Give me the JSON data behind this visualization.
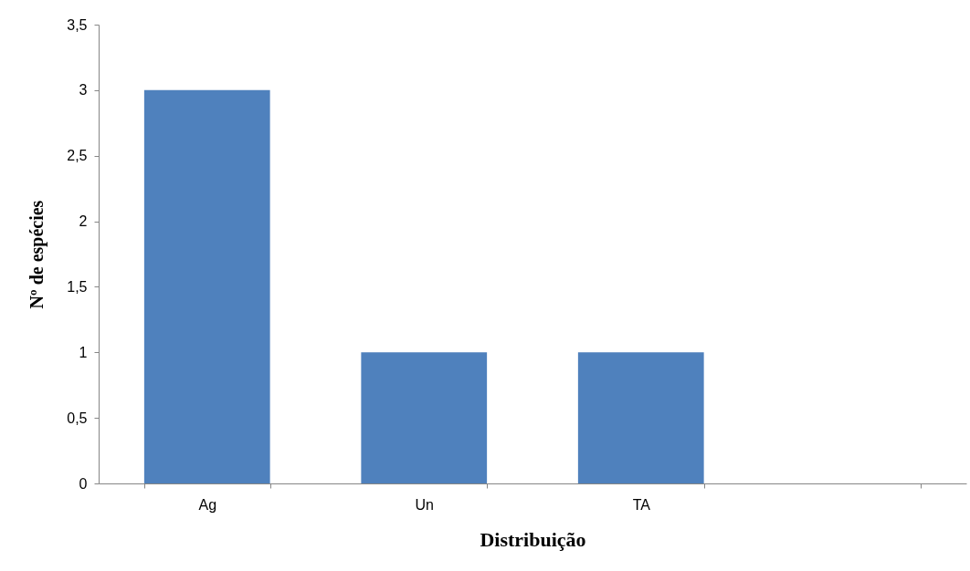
{
  "chart_data": {
    "type": "bar",
    "xlabel": "Distribuição",
    "ylabel": "Nº de espécies",
    "categories": [
      "Ag",
      "Un",
      "TA",
      null
    ],
    "values": [
      3,
      1,
      1,
      null
    ],
    "color": "#4f81bd",
    "ylim": [
      0,
      3.5
    ],
    "yticks": [
      0,
      {
        "value": 0.5,
        "label": "0,5"
      },
      1,
      {
        "value": 1.5,
        "label": "1,5"
      },
      2,
      {
        "value": 2.5,
        "label": "2,5"
      },
      3,
      {
        "value": 3.5,
        "label": "3,5"
      }
    ],
    "grid": false
  }
}
